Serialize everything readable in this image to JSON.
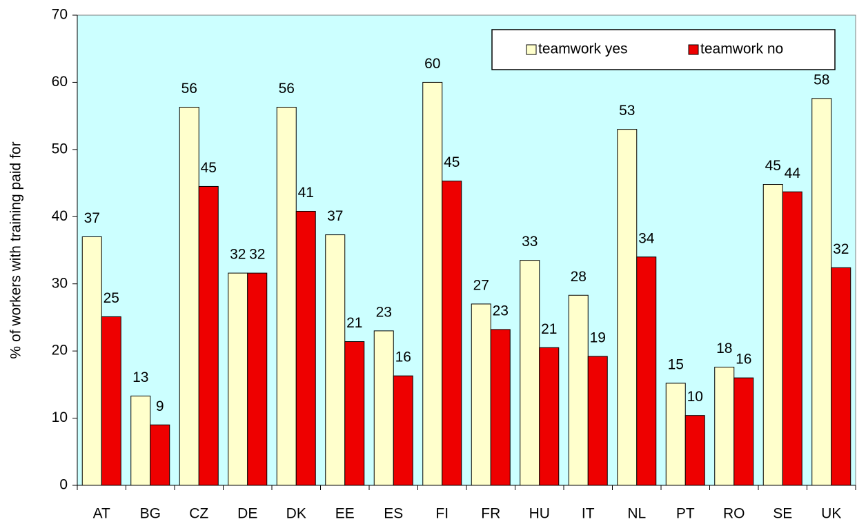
{
  "chart_data": {
    "type": "bar",
    "y_label": "% of workers with training paid for",
    "categories": [
      "AT",
      "BG",
      "CZ",
      "DE",
      "DK",
      "EE",
      "ES",
      "FI",
      "FR",
      "HU",
      "IT",
      "NL",
      "PT",
      "RO",
      "SE",
      "UK"
    ],
    "series": [
      {
        "name": "teamwork yes",
        "color": "#ffffcc",
        "values": [
          37,
          13.3,
          56.3,
          31.6,
          56.3,
          37.3,
          23,
          60,
          27,
          33.5,
          28.3,
          53,
          15.2,
          17.6,
          44.8,
          57.6
        ],
        "value_labels": [
          "37",
          "13",
          "56",
          "32",
          "56",
          "37",
          "23",
          "60",
          "27",
          "33",
          "28",
          "53",
          "15",
          "18",
          "45",
          "58"
        ]
      },
      {
        "name": "teamwork no",
        "color": "#ee0000",
        "values": [
          25.1,
          9,
          44.5,
          31.6,
          40.8,
          21.4,
          16.3,
          45.3,
          23.2,
          20.5,
          19.2,
          34,
          10.4,
          16,
          43.7,
          32.4
        ],
        "value_labels": [
          "25",
          "9",
          "45",
          "32",
          "41",
          "21",
          "16",
          "45",
          "23",
          "21",
          "19",
          "34",
          "10",
          "16",
          "44",
          "32"
        ]
      }
    ],
    "ylim": [
      0,
      70
    ],
    "yticks": [
      0,
      10,
      20,
      30,
      40,
      50,
      60,
      70
    ],
    "plot_background": "#ccffff",
    "legend": "upper right"
  }
}
